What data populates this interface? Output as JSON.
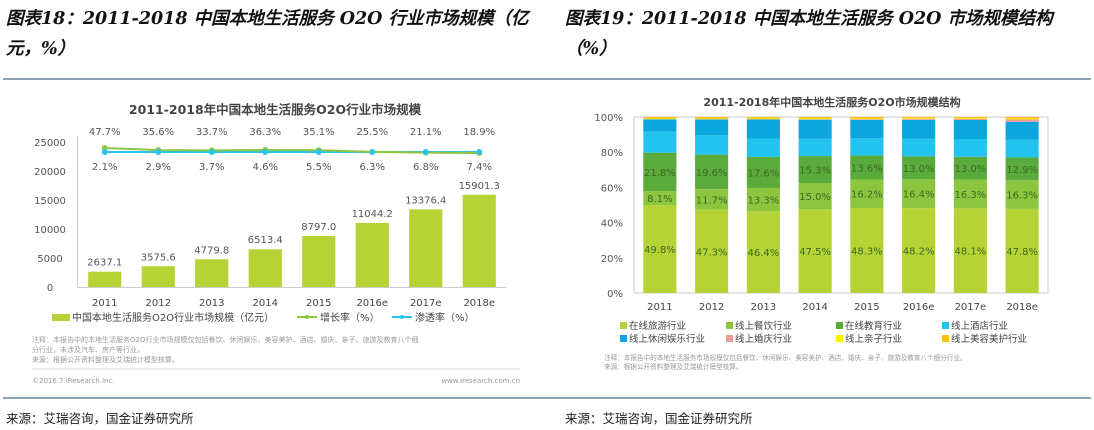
{
  "page": {
    "left_title": "图表18：2011-2018 中国本地生活服务 O2O 行业市场规模（亿元，%）",
    "right_title": "图表19：2011-2018 中国本地生活服务 O2O 市场规模结构（%）",
    "left_source": "来源：艾瑞咨询，国金证券研究所",
    "right_source": "来源：艾瑞咨询，国金证券研究所"
  },
  "chart_data": [
    {
      "type": "bar",
      "title": "2011-2018年中国本地生活服务O2O行业市场规模",
      "categories": [
        "2011",
        "2012",
        "2013",
        "2014",
        "2015",
        "2016e",
        "2017e",
        "2018e"
      ],
      "ylim": [
        0,
        25000
      ],
      "yticks": [
        "0",
        "5000",
        "10000",
        "15000",
        "20000",
        "25000"
      ],
      "series": [
        {
          "name": "中国本地生活服务O2O行业市场规模（亿元）",
          "kind": "bar",
          "color": "#b5d334",
          "values": [
            2637.1,
            3575.6,
            4779.8,
            6513.4,
            8797.0,
            11044.2,
            13376.4,
            15901.3
          ],
          "labels": [
            "2637.1",
            "3575.6",
            "4779.8",
            "6513.4",
            "8797.0",
            "11044.2",
            "13376.4",
            "15901.3"
          ]
        },
        {
          "name": "增长率（%）",
          "kind": "line",
          "color": "#8cc63f",
          "values": [
            47.7,
            35.6,
            33.7,
            36.3,
            35.1,
            25.5,
            21.1,
            18.9
          ],
          "labels": [
            "47.7%",
            "35.6%",
            "33.7%",
            "36.3%",
            "35.1%",
            "25.5%",
            "21.1%",
            "18.9%"
          ]
        },
        {
          "name": "渗透率（%）",
          "kind": "line",
          "color": "#29c4ef",
          "values": [
            2.1,
            2.9,
            3.7,
            4.6,
            5.5,
            6.3,
            6.8,
            7.4
          ],
          "labels": [
            "2.1%",
            "2.9%",
            "3.7%",
            "4.6%",
            "5.5%",
            "6.3%",
            "6.8%",
            "7.4%"
          ]
        }
      ],
      "note": "注释：本报告中的本地生活服务O2O行业市场规模仅包括餐饮、休闲娱乐、美容美护、酒店、婚庆、亲子、旅游及教育八个细分行业，未涉及汽车、房产等行业。",
      "note_source": "来源：根据公开资料整理及艾瑞统计模型核算。",
      "copyright": "©2016.7 iResearch Inc.",
      "website": "www.iresearch.com.cn",
      "legend": "bottom"
    },
    {
      "type": "bar",
      "stacked": true,
      "title": "2011-2018年中国本地生活服务O2O市场规模结构",
      "categories": [
        "2011",
        "2012",
        "2013",
        "2014",
        "2015",
        "2016e",
        "2017e",
        "2018e"
      ],
      "ylim": [
        0,
        100
      ],
      "yticks": [
        "0%",
        "20%",
        "40%",
        "60%",
        "80%",
        "100%"
      ],
      "series": [
        {
          "name": "在线旅游行业",
          "color": "#b5d334",
          "values": [
            49.8,
            47.3,
            46.4,
            47.5,
            48.3,
            48.2,
            48.1,
            47.8
          ],
          "labeled": true
        },
        {
          "name": "线上餐饮行业",
          "color": "#8cc63f",
          "values": [
            8.1,
            11.7,
            13.3,
            15.0,
            16.2,
            16.4,
            16.3,
            16.3
          ],
          "labeled": true
        },
        {
          "name": "在线教育行业",
          "color": "#5aaa3c",
          "values": [
            21.8,
            19.6,
            17.6,
            15.3,
            13.6,
            13.0,
            13.0,
            12.9
          ],
          "labeled": true
        },
        {
          "name": "线上酒店行业",
          "color": "#22c3ee",
          "values": [
            12.0,
            11.0,
            10.5,
            9.8,
            9.8,
            10.0,
            10.1,
            10.0
          ],
          "labeled": false
        },
        {
          "name": "线上休闲娱乐行业",
          "color": "#0ba6de",
          "values": [
            7.0,
            9.0,
            10.8,
            10.9,
            10.5,
            10.8,
            10.8,
            10.3
          ],
          "labeled": false
        },
        {
          "name": "线上婚庆行业",
          "color": "#f19a9a",
          "values": [
            0.0,
            0.1,
            0.2,
            0.2,
            0.4,
            0.5,
            0.6,
            1.3
          ],
          "labeled": false
        },
        {
          "name": "线上亲子行业",
          "color": "#fff200",
          "values": [
            0.3,
            0.3,
            0.4,
            0.4,
            0.4,
            0.4,
            0.4,
            0.5
          ],
          "labeled": false
        },
        {
          "name": "线上美容美护行业",
          "color": "#f7c116",
          "values": [
            1.0,
            1.0,
            0.8,
            0.9,
            0.8,
            0.7,
            0.7,
            0.9
          ],
          "labeled": false
        }
      ],
      "note": "注释：本报告中的本地生活服务市场规模仅包括餐饮、休闲娱乐、美容美护、酒店、婚庆、亲子、旅游及教育八个细分行业。",
      "note_source": "来源：根据公开资料整理及艾瑞统计模型核算。",
      "legend": "bottom"
    }
  ]
}
